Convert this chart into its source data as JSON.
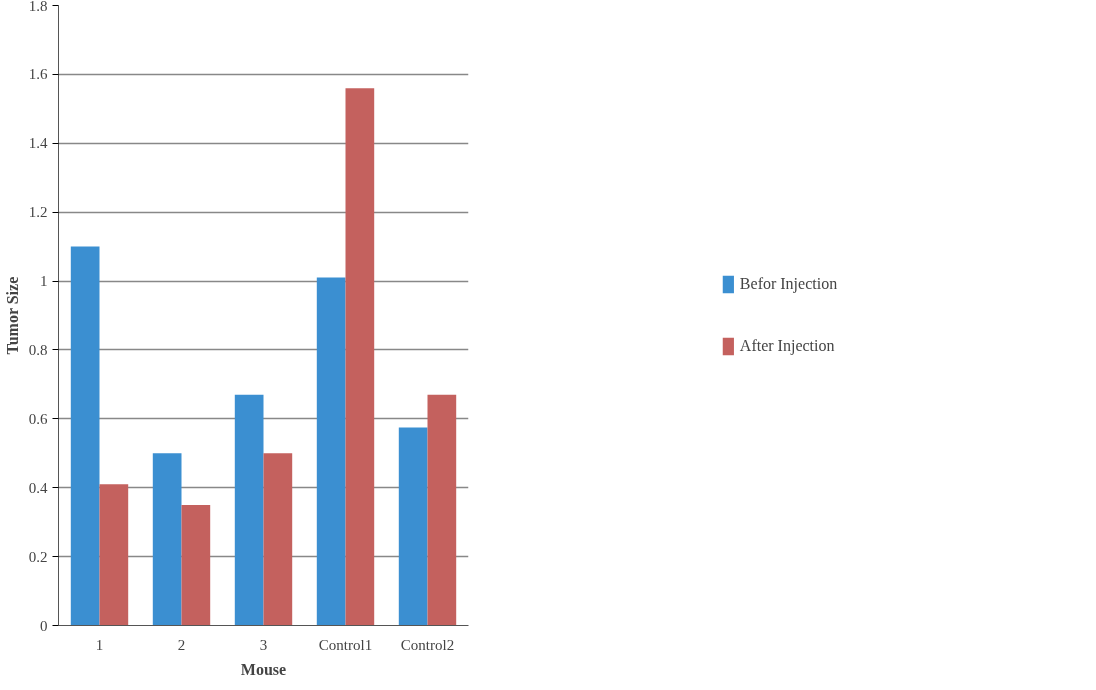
{
  "chart_data": {
    "type": "bar",
    "xlabel": "Mouse",
    "ylabel": "Tumor Size",
    "categories": [
      "1",
      "2",
      "3",
      "Control1",
      "Control2"
    ],
    "series": [
      {
        "name": "Befor Injection",
        "color": "#3b8fd1",
        "values": [
          1.1,
          0.5,
          0.67,
          1.01,
          0.575
        ]
      },
      {
        "name": "After Injection",
        "color": "#c4615e",
        "values": [
          0.41,
          0.35,
          0.5,
          1.56,
          0.67
        ]
      }
    ],
    "ylim": [
      0,
      1.8
    ],
    "yticks": [
      0,
      0.2,
      0.4,
      0.6,
      0.8,
      1,
      1.2,
      1.4,
      1.6,
      1.8
    ],
    "grid": "y",
    "legend": "right"
  }
}
